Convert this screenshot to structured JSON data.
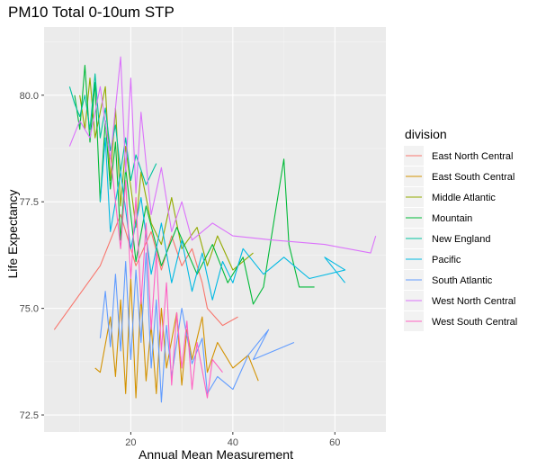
{
  "chart_data": {
    "type": "line",
    "title": "PM10 Total 0-10um STP",
    "xlabel": "Annual Mean Measurement",
    "ylabel": "Life Expectancy",
    "xlim": [
      3,
      70
    ],
    "ylim": [
      72.1,
      81.6
    ],
    "x_ticks": [
      20,
      40,
      60
    ],
    "x_tick_labels": [
      "20",
      "40",
      "60"
    ],
    "y_ticks": [
      72.5,
      75.0,
      77.5,
      80.0
    ],
    "y_tick_labels": [
      "72.5",
      "75.0",
      "77.5",
      "80.0"
    ],
    "grid": true,
    "legend": {
      "title": "division",
      "placement": "right",
      "entries": [
        "East North Central",
        "East South Central",
        "Middle Atlantic",
        "Mountain",
        "New England",
        "Pacific",
        "South Atlantic",
        "West North Central",
        "West South Central"
      ]
    },
    "series": [
      {
        "name": "East North Central",
        "color": "#F8766D",
        "points": [
          [
            5.0,
            74.5
          ],
          [
            14.0,
            76.0
          ],
          [
            18.0,
            77.2
          ],
          [
            21.0,
            76.0
          ],
          [
            24.0,
            76.8
          ],
          [
            26.0,
            75.9
          ],
          [
            28.0,
            76.7
          ],
          [
            30.0,
            76.0
          ],
          [
            32.0,
            76.4
          ],
          [
            34.0,
            75.6
          ],
          [
            35.0,
            75.0
          ],
          [
            38.0,
            74.6
          ],
          [
            41.0,
            74.8
          ]
        ]
      },
      {
        "name": "East South Central",
        "color": "#D39200",
        "points": [
          [
            13.0,
            73.6
          ],
          [
            14.0,
            73.5
          ],
          [
            16.0,
            74.8
          ],
          [
            17.0,
            73.4
          ],
          [
            18.0,
            75.2
          ],
          [
            19.0,
            73.0
          ],
          [
            20.0,
            75.7
          ],
          [
            21.0,
            72.9
          ],
          [
            22.0,
            75.3
          ],
          [
            23.0,
            73.3
          ],
          [
            24.0,
            74.6
          ],
          [
            25.0,
            73.0
          ],
          [
            26.0,
            75.0
          ],
          [
            27.0,
            73.6
          ],
          [
            29.0,
            74.9
          ],
          [
            30.0,
            73.2
          ],
          [
            31.0,
            74.5
          ],
          [
            32.0,
            73.8
          ],
          [
            34.0,
            74.8
          ],
          [
            35.0,
            73.5
          ],
          [
            37.0,
            74.2
          ],
          [
            40.0,
            73.6
          ],
          [
            43.0,
            73.9
          ],
          [
            45.0,
            73.3
          ]
        ]
      },
      {
        "name": "Middle Atlantic",
        "color": "#93AA00",
        "points": [
          [
            10.0,
            80.0
          ],
          [
            11.0,
            79.2
          ],
          [
            12.0,
            80.4
          ],
          [
            13.0,
            79.0
          ],
          [
            15.0,
            80.2
          ],
          [
            16.0,
            78.0
          ],
          [
            17.0,
            79.7
          ],
          [
            18.0,
            77.4
          ],
          [
            19.0,
            78.8
          ],
          [
            21.0,
            76.9
          ],
          [
            22.0,
            78.2
          ],
          [
            24.0,
            77.0
          ],
          [
            26.0,
            76.5
          ],
          [
            28.0,
            77.6
          ],
          [
            30.0,
            76.4
          ],
          [
            33.0,
            76.9
          ],
          [
            35.0,
            76.0
          ],
          [
            37.0,
            76.7
          ],
          [
            40.0,
            75.9
          ],
          [
            44.0,
            76.3
          ]
        ]
      },
      {
        "name": "Mountain",
        "color": "#00BA38",
        "points": [
          [
            9.0,
            80.0
          ],
          [
            10.0,
            79.2
          ],
          [
            11.0,
            80.7
          ],
          [
            12.0,
            78.9
          ],
          [
            13.0,
            80.3
          ],
          [
            14.0,
            77.5
          ],
          [
            15.0,
            79.4
          ],
          [
            16.0,
            77.8
          ],
          [
            17.0,
            78.9
          ],
          [
            18.0,
            76.6
          ],
          [
            19.0,
            78.3
          ],
          [
            21.0,
            76.1
          ],
          [
            23.0,
            77.4
          ],
          [
            26.0,
            76.0
          ],
          [
            29.0,
            76.9
          ],
          [
            33.0,
            75.8
          ],
          [
            36.0,
            76.5
          ],
          [
            39.0,
            75.6
          ],
          [
            42.0,
            76.2
          ],
          [
            44.0,
            75.1
          ],
          [
            46.0,
            75.5
          ],
          [
            48.0,
            77.0
          ],
          [
            50.0,
            78.5
          ],
          [
            51.0,
            76.5
          ],
          [
            53.0,
            75.5
          ],
          [
            56.0,
            75.5
          ]
        ]
      },
      {
        "name": "New England",
        "color": "#00C19F",
        "points": [
          [
            8.0,
            80.2
          ],
          [
            9.0,
            79.8
          ],
          [
            10.0,
            79.5
          ],
          [
            11.0,
            80.0
          ],
          [
            12.0,
            79.2
          ],
          [
            13.0,
            80.5
          ],
          [
            14.0,
            79.0
          ],
          [
            15.0,
            79.7
          ],
          [
            16.0,
            78.7
          ],
          [
            17.0,
            79.3
          ],
          [
            18.0,
            78.2
          ],
          [
            19.0,
            79.0
          ],
          [
            20.0,
            78.0
          ],
          [
            21.0,
            78.6
          ],
          [
            23.0,
            77.9
          ],
          [
            25.0,
            78.4
          ]
        ]
      },
      {
        "name": "Pacific",
        "color": "#00B9E3",
        "points": [
          [
            14.0,
            77.5
          ],
          [
            15.0,
            79.0
          ],
          [
            16.0,
            76.8
          ],
          [
            18.0,
            78.2
          ],
          [
            20.0,
            76.4
          ],
          [
            22.0,
            77.6
          ],
          [
            24.0,
            75.8
          ],
          [
            26.0,
            77.0
          ],
          [
            28.0,
            75.6
          ],
          [
            30.0,
            76.6
          ],
          [
            32.0,
            75.4
          ],
          [
            34.0,
            76.3
          ],
          [
            36.0,
            75.2
          ],
          [
            38.0,
            76.1
          ],
          [
            40.0,
            75.6
          ],
          [
            42.0,
            76.4
          ],
          [
            46.0,
            75.8
          ],
          [
            50.0,
            76.2
          ],
          [
            55.0,
            75.7
          ],
          [
            62.0,
            75.9
          ],
          [
            58.0,
            76.2
          ],
          [
            62.0,
            75.6
          ]
        ]
      },
      {
        "name": "South Atlantic",
        "color": "#619CFF",
        "points": [
          [
            14.0,
            74.3
          ],
          [
            15.0,
            75.4
          ],
          [
            16.0,
            74.1
          ],
          [
            17.0,
            75.8
          ],
          [
            18.0,
            74.0
          ],
          [
            19.0,
            76.1
          ],
          [
            20.0,
            73.8
          ],
          [
            21.0,
            75.9
          ],
          [
            22.0,
            74.2
          ],
          [
            23.0,
            76.3
          ],
          [
            24.0,
            73.6
          ],
          [
            25.0,
            75.2
          ],
          [
            26.0,
            72.8
          ],
          [
            27.0,
            74.6
          ],
          [
            28.0,
            73.4
          ],
          [
            30.0,
            75.0
          ],
          [
            32.0,
            73.7
          ],
          [
            34.0,
            74.3
          ],
          [
            35.0,
            73.0
          ],
          [
            37.0,
            73.4
          ],
          [
            40.0,
            73.1
          ],
          [
            43.0,
            73.9
          ],
          [
            47.0,
            74.5
          ],
          [
            44.0,
            73.8
          ],
          [
            52.0,
            74.2
          ]
        ]
      },
      {
        "name": "West North Central",
        "color": "#DB72FB",
        "points": [
          [
            8.0,
            78.8
          ],
          [
            10.0,
            79.4
          ],
          [
            12.0,
            79.0
          ],
          [
            14.0,
            80.2
          ],
          [
            16.0,
            78.5
          ],
          [
            18.0,
            80.9
          ],
          [
            19.0,
            78.2
          ],
          [
            20.0,
            80.4
          ],
          [
            21.0,
            77.7
          ],
          [
            22.0,
            79.6
          ],
          [
            24.0,
            77.2
          ],
          [
            26.0,
            78.3
          ],
          [
            28.0,
            76.8
          ],
          [
            30.0,
            77.5
          ],
          [
            32.0,
            76.6
          ],
          [
            36.0,
            77.0
          ],
          [
            40.0,
            76.7
          ],
          [
            48.0,
            76.6
          ],
          [
            58.0,
            76.5
          ],
          [
            67.0,
            76.3
          ],
          [
            68.0,
            76.7
          ]
        ]
      },
      {
        "name": "West South Central",
        "color": "#FF61C3",
        "points": [
          [
            16.0,
            78.6
          ],
          [
            18.0,
            76.4
          ],
          [
            19.0,
            78.0
          ],
          [
            20.0,
            75.7
          ],
          [
            21.0,
            77.6
          ],
          [
            22.0,
            75.1
          ],
          [
            23.0,
            77.0
          ],
          [
            24.0,
            74.5
          ],
          [
            25.0,
            76.3
          ],
          [
            26.0,
            74.0
          ],
          [
            27.0,
            75.6
          ],
          [
            28.0,
            73.2
          ],
          [
            29.0,
            74.9
          ],
          [
            30.0,
            73.6
          ],
          [
            31.0,
            74.7
          ],
          [
            32.0,
            73.1
          ],
          [
            33.0,
            74.2
          ],
          [
            35.0,
            72.9
          ],
          [
            36.0,
            73.8
          ],
          [
            38.0,
            73.5
          ]
        ]
      }
    ]
  }
}
